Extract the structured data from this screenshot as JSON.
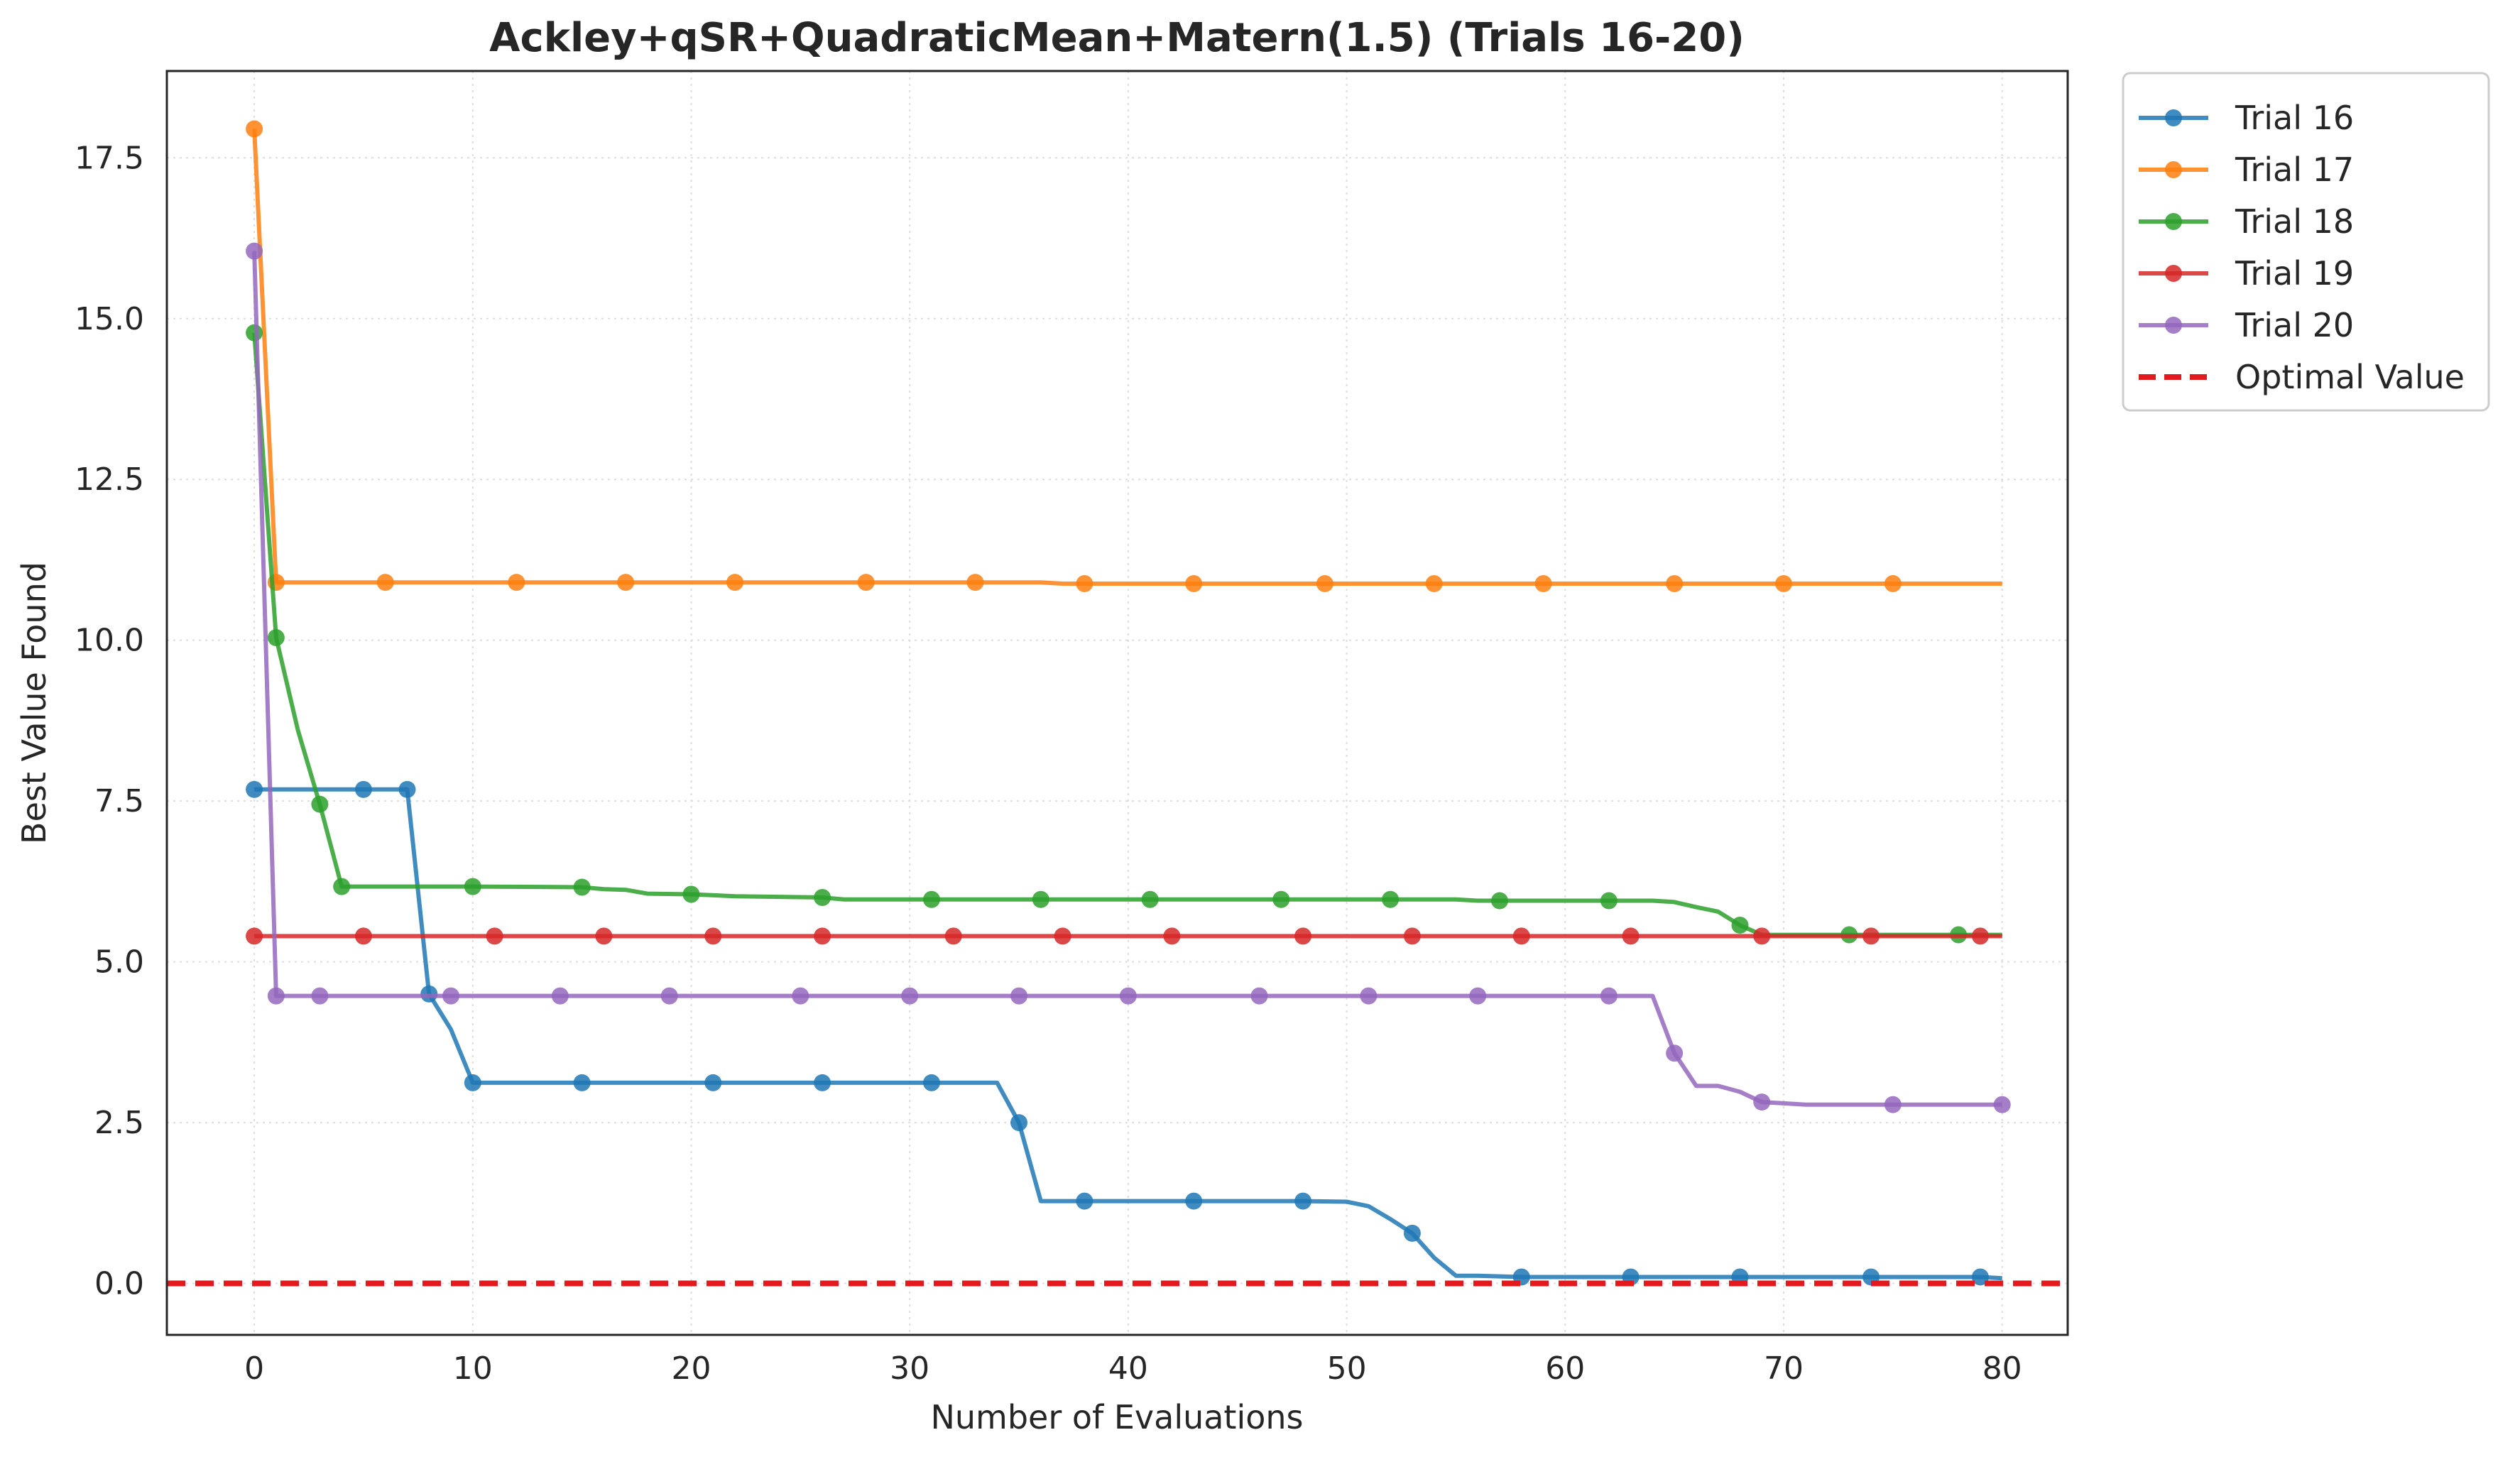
{
  "chart_data": {
    "type": "line",
    "title": "Ackley+qSR+QuadraticMean+Matern(1.5) (Trials 16-20)",
    "xlabel": "Number of Evaluations",
    "ylabel": "Best Value Found",
    "xlim": [
      -4,
      83
    ],
    "ylim": [
      -0.8,
      18.85
    ],
    "xticks": [
      0,
      10,
      20,
      30,
      40,
      50,
      60,
      70,
      80
    ],
    "yticks": [
      0.0,
      2.5,
      5.0,
      7.5,
      10.0,
      12.5,
      15.0,
      17.5
    ],
    "xtick_labels": [
      "0",
      "10",
      "20",
      "30",
      "40",
      "50",
      "60",
      "70",
      "80"
    ],
    "ytick_labels": [
      "0.0",
      "2.5",
      "5.0",
      "7.5",
      "10.0",
      "12.5",
      "15.0",
      "17.5"
    ],
    "grid": true,
    "legend_position": "outside top-right",
    "series": [
      {
        "name": "Trial 16",
        "color": "#1f77b4",
        "points": [
          [
            0,
            7.68
          ],
          [
            1,
            7.68
          ],
          [
            2,
            7.68
          ],
          [
            3,
            7.68
          ],
          [
            4,
            7.68
          ],
          [
            5,
            7.68
          ],
          [
            6,
            7.68
          ],
          [
            7,
            7.68
          ],
          [
            8,
            4.5
          ],
          [
            9,
            3.95
          ],
          [
            10,
            3.12
          ],
          [
            11,
            3.12
          ],
          [
            15,
            3.12
          ],
          [
            21,
            3.12
          ],
          [
            26,
            3.12
          ],
          [
            31,
            3.12
          ],
          [
            34,
            3.12
          ],
          [
            35,
            2.5
          ],
          [
            36,
            1.28
          ],
          [
            38,
            1.28
          ],
          [
            43,
            1.28
          ],
          [
            48,
            1.28
          ],
          [
            50,
            1.27
          ],
          [
            51,
            1.2
          ],
          [
            52,
            1.0
          ],
          [
            53,
            0.78
          ],
          [
            54,
            0.4
          ],
          [
            55,
            0.12
          ],
          [
            56,
            0.12
          ],
          [
            58,
            0.1
          ],
          [
            63,
            0.1
          ],
          [
            68,
            0.1
          ],
          [
            74,
            0.1
          ],
          [
            79,
            0.1
          ],
          [
            80,
            0.08
          ]
        ],
        "markers": [
          [
            0,
            7.68
          ],
          [
            5,
            7.68
          ],
          [
            7,
            7.68
          ],
          [
            8,
            4.5
          ],
          [
            10,
            3.12
          ],
          [
            15,
            3.12
          ],
          [
            21,
            3.12
          ],
          [
            26,
            3.12
          ],
          [
            31,
            3.12
          ],
          [
            35,
            2.5
          ],
          [
            38,
            1.28
          ],
          [
            43,
            1.28
          ],
          [
            48,
            1.28
          ],
          [
            53,
            0.78
          ],
          [
            58,
            0.1
          ],
          [
            63,
            0.1
          ],
          [
            68,
            0.1
          ],
          [
            74,
            0.1
          ],
          [
            79,
            0.1
          ]
        ]
      },
      {
        "name": "Trial 17",
        "color": "#ff7f0e",
        "points": [
          [
            0,
            17.95
          ],
          [
            1,
            10.9
          ],
          [
            6,
            10.9
          ],
          [
            12,
            10.9
          ],
          [
            17,
            10.9
          ],
          [
            22,
            10.9
          ],
          [
            28,
            10.9
          ],
          [
            33,
            10.9
          ],
          [
            36,
            10.9
          ],
          [
            37,
            10.88
          ],
          [
            43,
            10.88
          ],
          [
            49,
            10.88
          ],
          [
            54,
            10.88
          ],
          [
            59,
            10.88
          ],
          [
            65,
            10.88
          ],
          [
            70,
            10.88
          ],
          [
            75,
            10.88
          ],
          [
            80,
            10.88
          ]
        ],
        "markers": [
          [
            0,
            17.95
          ],
          [
            1,
            10.9
          ],
          [
            6,
            10.9
          ],
          [
            12,
            10.9
          ],
          [
            17,
            10.9
          ],
          [
            22,
            10.9
          ],
          [
            28,
            10.9
          ],
          [
            33,
            10.9
          ],
          [
            38,
            10.88
          ],
          [
            43,
            10.88
          ],
          [
            49,
            10.88
          ],
          [
            54,
            10.88
          ],
          [
            59,
            10.88
          ],
          [
            65,
            10.88
          ],
          [
            70,
            10.88
          ],
          [
            75,
            10.88
          ]
        ]
      },
      {
        "name": "Trial 18",
        "color": "#2ca02c",
        "points": [
          [
            0,
            14.78
          ],
          [
            1,
            10.04
          ],
          [
            2,
            8.6
          ],
          [
            3,
            7.45
          ],
          [
            4,
            6.17
          ],
          [
            10,
            6.17
          ],
          [
            15,
            6.16
          ],
          [
            16,
            6.13
          ],
          [
            17,
            6.12
          ],
          [
            18,
            6.06
          ],
          [
            20,
            6.05
          ],
          [
            22,
            6.02
          ],
          [
            26,
            6.0
          ],
          [
            27,
            5.97
          ],
          [
            31,
            5.97
          ],
          [
            36,
            5.97
          ],
          [
            41,
            5.97
          ],
          [
            47,
            5.97
          ],
          [
            52,
            5.97
          ],
          [
            55,
            5.97
          ],
          [
            56,
            5.95
          ],
          [
            57,
            5.95
          ],
          [
            62,
            5.95
          ],
          [
            64,
            5.95
          ],
          [
            65,
            5.93
          ],
          [
            66,
            5.85
          ],
          [
            67,
            5.78
          ],
          [
            68,
            5.57
          ],
          [
            69,
            5.42
          ],
          [
            73,
            5.42
          ],
          [
            78,
            5.42
          ],
          [
            80,
            5.42
          ]
        ],
        "markers": [
          [
            0,
            14.78
          ],
          [
            1,
            10.04
          ],
          [
            3,
            7.45
          ],
          [
            4,
            6.17
          ],
          [
            10,
            6.17
          ],
          [
            15,
            6.16
          ],
          [
            20,
            6.05
          ],
          [
            26,
            6.0
          ],
          [
            31,
            5.97
          ],
          [
            36,
            5.97
          ],
          [
            41,
            5.97
          ],
          [
            47,
            5.97
          ],
          [
            52,
            5.97
          ],
          [
            57,
            5.95
          ],
          [
            62,
            5.95
          ],
          [
            68,
            5.57
          ],
          [
            73,
            5.42
          ],
          [
            78,
            5.42
          ]
        ]
      },
      {
        "name": "Trial 19",
        "color": "#d62728",
        "points": [
          [
            0,
            5.4
          ],
          [
            80,
            5.4
          ]
        ],
        "markers": [
          [
            0,
            5.4
          ],
          [
            5,
            5.4
          ],
          [
            11,
            5.4
          ],
          [
            16,
            5.4
          ],
          [
            21,
            5.4
          ],
          [
            26,
            5.4
          ],
          [
            32,
            5.4
          ],
          [
            37,
            5.4
          ],
          [
            42,
            5.4
          ],
          [
            48,
            5.4
          ],
          [
            53,
            5.4
          ],
          [
            58,
            5.4
          ],
          [
            63,
            5.4
          ],
          [
            69,
            5.4
          ],
          [
            74,
            5.4
          ],
          [
            79,
            5.4
          ]
        ]
      },
      {
        "name": "Trial 20",
        "color": "#9467bd",
        "points": [
          [
            0,
            16.05
          ],
          [
            1,
            4.47
          ],
          [
            3,
            4.47
          ],
          [
            9,
            4.47
          ],
          [
            14,
            4.47
          ],
          [
            19,
            4.47
          ],
          [
            25,
            4.47
          ],
          [
            30,
            4.47
          ],
          [
            35,
            4.47
          ],
          [
            40,
            4.47
          ],
          [
            46,
            4.47
          ],
          [
            51,
            4.47
          ],
          [
            56,
            4.47
          ],
          [
            62,
            4.47
          ],
          [
            64,
            4.47
          ],
          [
            65,
            3.58
          ],
          [
            66,
            3.07
          ],
          [
            67,
            3.07
          ],
          [
            68,
            2.98
          ],
          [
            69,
            2.82
          ],
          [
            70,
            2.8
          ],
          [
            71,
            2.78
          ],
          [
            75,
            2.78
          ],
          [
            80,
            2.78
          ]
        ],
        "markers": [
          [
            0,
            16.05
          ],
          [
            1,
            4.47
          ],
          [
            3,
            4.47
          ],
          [
            9,
            4.47
          ],
          [
            14,
            4.47
          ],
          [
            19,
            4.47
          ],
          [
            25,
            4.47
          ],
          [
            30,
            4.47
          ],
          [
            35,
            4.47
          ],
          [
            40,
            4.47
          ],
          [
            46,
            4.47
          ],
          [
            51,
            4.47
          ],
          [
            56,
            4.47
          ],
          [
            62,
            4.47
          ],
          [
            65,
            3.58
          ],
          [
            69,
            2.82
          ],
          [
            75,
            2.78
          ],
          [
            80,
            2.78
          ]
        ]
      },
      {
        "name": "Optimal Value",
        "color": "#e31a1c",
        "style": "dashed",
        "y": 0.0
      }
    ]
  }
}
